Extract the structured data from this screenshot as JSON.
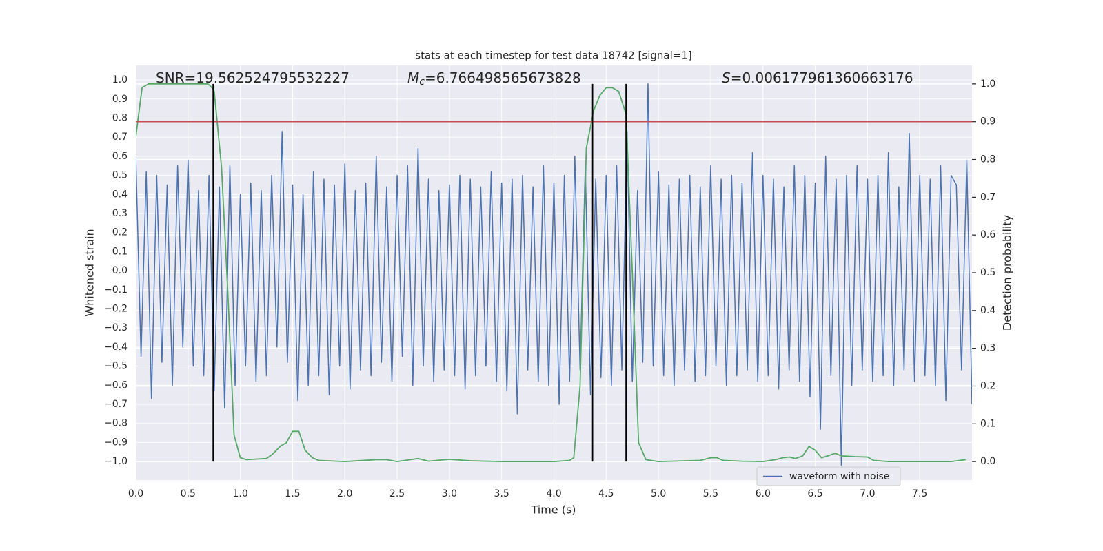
{
  "chart_data": {
    "type": "line",
    "title": "stats at each timestep for test data 18742 [signal=1]",
    "xlabel": "Time (s)",
    "ylabel": "Whitened strain",
    "y2label": "Detection probability",
    "annotations": [
      {
        "text": "SNR=19.562524795532227"
      },
      {
        "symbol": "M",
        "subscript": "c",
        "text": "=6.766498565673828"
      },
      {
        "symbol": "S",
        "text": "=0.006177961360663176"
      }
    ],
    "xlim": [
      0,
      8
    ],
    "ylim": [
      -1.097,
      1.076
    ],
    "y2lim": [
      -0.049,
      1.049
    ],
    "xticks": [
      {
        "value": 0,
        "label": "0.0"
      },
      0.5,
      {
        "value": 1,
        "label": "1.0"
      },
      1.5,
      {
        "value": 2,
        "label": "2.0"
      },
      2.5,
      {
        "value": 3,
        "label": "3.0"
      },
      3.5,
      {
        "value": 4,
        "label": "4.0"
      },
      4.5,
      {
        "value": 5,
        "label": "5.0"
      },
      5.5,
      {
        "value": 6,
        "label": "6.0"
      },
      6.5,
      {
        "value": 7,
        "label": "7.0"
      },
      7.5
    ],
    "yticks": [
      {
        "value": -1,
        "label": "−1.0"
      },
      {
        "value": -0.9,
        "label": "−0.9"
      },
      {
        "value": -0.8,
        "label": "−0.8"
      },
      {
        "value": -0.7,
        "label": "−0.7"
      },
      {
        "value": -0.6,
        "label": "−0.6"
      },
      {
        "value": -0.5,
        "label": "−0.5"
      },
      {
        "value": -0.4,
        "label": "−0.4"
      },
      {
        "value": -0.3,
        "label": "−0.3"
      },
      {
        "value": -0.2,
        "label": "−0.2"
      },
      {
        "value": -0.1,
        "label": "−0.1"
      },
      {
        "value": 0,
        "label": "0.0"
      },
      0.1,
      0.2,
      0.3,
      0.4,
      0.5,
      0.6,
      0.7,
      0.8,
      0.9,
      {
        "value": 1,
        "label": "1.0"
      }
    ],
    "y2ticks": [
      {
        "value": 0,
        "label": "0.0"
      },
      0.1,
      0.2,
      0.3,
      0.4,
      0.5,
      0.6,
      0.7,
      0.8,
      0.9,
      {
        "value": 1,
        "label": "1.0"
      }
    ],
    "grid": true,
    "legend": "lower right",
    "series": [
      {
        "name": "waveform with noise",
        "color": "#4c72b0",
        "x": [
          0,
          0.05,
          0.1,
          0.15,
          0.2,
          0.25,
          0.3,
          0.35,
          0.4,
          0.45,
          0.5,
          0.55,
          0.6,
          0.65,
          0.7,
          0.75,
          0.8,
          0.85,
          0.9,
          0.95,
          1,
          1.05,
          1.1,
          1.15,
          1.2,
          1.25,
          1.3,
          1.35,
          1.4,
          1.45,
          1.5,
          1.55,
          1.6,
          1.65,
          1.7,
          1.75,
          1.8,
          1.85,
          1.9,
          1.95,
          2,
          2.05,
          2.1,
          2.15,
          2.2,
          2.25,
          2.3,
          2.35,
          2.4,
          2.45,
          2.5,
          2.55,
          2.6,
          2.65,
          2.7,
          2.75,
          2.8,
          2.85,
          2.9,
          2.95,
          3,
          3.05,
          3.1,
          3.15,
          3.2,
          3.25,
          3.3,
          3.35,
          3.4,
          3.45,
          3.5,
          3.55,
          3.6,
          3.65,
          3.7,
          3.75,
          3.8,
          3.85,
          3.9,
          3.95,
          4,
          4.05,
          4.1,
          4.15,
          4.2,
          4.25,
          4.3,
          4.35,
          4.4,
          4.45,
          4.5,
          4.55,
          4.6,
          4.65,
          4.7,
          4.75,
          4.8,
          4.85,
          4.9,
          4.95,
          5,
          5.05,
          5.1,
          5.15,
          5.2,
          5.25,
          5.3,
          5.35,
          5.4,
          5.45,
          5.5,
          5.55,
          5.6,
          5.65,
          5.7,
          5.75,
          5.8,
          5.85,
          5.9,
          5.95,
          6,
          6.05,
          6.1,
          6.15,
          6.2,
          6.25,
          6.3,
          6.35,
          6.4,
          6.45,
          6.5,
          6.55,
          6.6,
          6.65,
          6.7,
          6.75,
          6.8,
          6.85,
          6.9,
          6.95,
          7,
          7.05,
          7.1,
          7.15,
          7.2,
          7.25,
          7.3,
          7.35,
          7.4,
          7.45,
          7.5,
          7.55,
          7.6,
          7.65,
          7.7,
          7.75,
          7.8,
          7.85,
          7.9,
          7.95,
          8
        ],
        "values": [
          0.6,
          -0.45,
          0.52,
          -0.67,
          0.5,
          -0.48,
          0.45,
          -0.6,
          0.55,
          -0.4,
          0.58,
          -0.5,
          0.42,
          -0.55,
          0.5,
          -0.63,
          0.44,
          -0.72,
          0.55,
          -0.6,
          0.4,
          -0.5,
          0.46,
          -0.58,
          0.42,
          -0.55,
          0.5,
          -0.4,
          0.73,
          -0.48,
          0.45,
          -0.68,
          0.4,
          -0.6,
          0.52,
          -0.55,
          0.48,
          -0.65,
          0.45,
          -0.5,
          0.56,
          -0.62,
          0.42,
          -0.52,
          0.46,
          -0.55,
          0.6,
          -0.48,
          0.44,
          -0.58,
          0.5,
          -0.45,
          0.55,
          -0.6,
          0.64,
          -0.5,
          0.48,
          -0.58,
          0.42,
          -0.52,
          0.45,
          -0.55,
          0.5,
          -0.62,
          0.48,
          -0.55,
          0.44,
          -0.5,
          0.52,
          -0.58,
          0.46,
          -0.63,
          0.48,
          -0.75,
          0.5,
          -0.52,
          0.44,
          -0.58,
          0.55,
          -0.6,
          0.46,
          -0.7,
          0.5,
          -0.58,
          0.6,
          -0.52,
          0.55,
          -0.65,
          0.48,
          -0.56,
          0.5,
          -0.6,
          0.55,
          -0.52,
          0.73,
          -0.58,
          0.42,
          -0.48,
          0.98,
          -0.5,
          0.52,
          -0.55,
          0.45,
          -0.6,
          0.48,
          -0.52,
          0.5,
          -0.58,
          0.44,
          -0.55,
          0.55,
          -0.5,
          0.48,
          -0.6,
          0.5,
          -0.55,
          0.46,
          -0.52,
          0.62,
          -0.58,
          0.5,
          -0.55,
          0.48,
          -0.62,
          0.44,
          -0.52,
          0.55,
          -0.58,
          0.5,
          -0.66,
          0.46,
          -0.83,
          0.6,
          -0.55,
          0.48,
          -1.02,
          0.5,
          -0.6,
          0.55,
          -0.52,
          0.48,
          -0.58,
          0.5,
          -0.55,
          0.62,
          -0.6,
          0.44,
          -0.52,
          0.72,
          -0.58,
          0.5,
          -0.55,
          0.48,
          -0.6,
          0.55,
          -0.68,
          0.5,
          0.45,
          -0.52,
          0.58,
          -0.7
        ]
      },
      {
        "color": "#55a868",
        "axis": "y2",
        "x": [
          0,
          0.06,
          0.12,
          0.69,
          0.73,
          0.75,
          0.82,
          0.88,
          0.94,
          1,
          1.06,
          1.25,
          1.31,
          1.38,
          1.44,
          1.5,
          1.56,
          1.62,
          1.69,
          1.75,
          2,
          2.3,
          2.4,
          2.5,
          2.7,
          2.8,
          3,
          3.2,
          3.5,
          4,
          4.15,
          4.19,
          4.25,
          4.31,
          4.38,
          4.44,
          4.5,
          4.56,
          4.62,
          4.69,
          4.75,
          4.81,
          4.88,
          5,
          5.4,
          5.5,
          5.56,
          5.62,
          5.8,
          6,
          6.12,
          6.19,
          6.25,
          6.31,
          6.38,
          6.44,
          6.5,
          6.56,
          6.62,
          6.69,
          6.75,
          6.88,
          7,
          7.06,
          7.2,
          7.5,
          7.8,
          7.94
        ],
        "values": [
          0.86,
          0.99,
          1,
          1,
          0.99,
          0.98,
          0.78,
          0.45,
          0.07,
          0.01,
          0.005,
          0.008,
          0.02,
          0.04,
          0.05,
          0.08,
          0.08,
          0.03,
          0.01,
          0.003,
          0,
          0.005,
          0.005,
          0,
          0.008,
          0.001,
          0.006,
          0.002,
          0,
          0,
          0.003,
          0.01,
          0.2,
          0.83,
          0.93,
          0.97,
          0.99,
          0.99,
          0.98,
          0.92,
          0.5,
          0.05,
          0.005,
          0,
          0.003,
          0.01,
          0.01,
          0.003,
          0.001,
          0,
          0.005,
          0.01,
          0.012,
          0.008,
          0.015,
          0.04,
          0.03,
          0.01,
          0.015,
          0.022,
          0.015,
          0.013,
          0.012,
          0.003,
          0,
          0,
          0,
          0.005
        ]
      }
    ],
    "vlines": {
      "color": "#000000",
      "x": [
        0.74,
        4.37,
        4.69
      ],
      "y2range": [
        0,
        1
      ]
    },
    "threshold": {
      "color": "#c44e52",
      "value": 0.9,
      "axis": "y2"
    }
  }
}
